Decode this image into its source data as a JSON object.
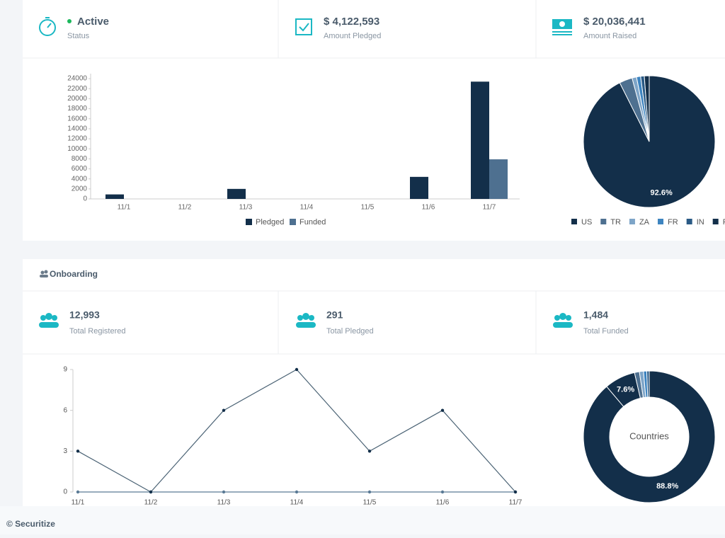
{
  "stats": [
    {
      "value": "Active",
      "label": "Status"
    },
    {
      "value": "$ 4,122,593",
      "label": "Amount Pledged"
    },
    {
      "value": "$ 20,036,441",
      "label": "Amount Raised"
    }
  ],
  "onboarding": {
    "title": "Onboarding",
    "stats": [
      {
        "value": "12,993",
        "label": "Total Registered"
      },
      {
        "value": "291",
        "label": "Total Pledged"
      },
      {
        "value": "1,484",
        "label": "Total Funded"
      }
    ]
  },
  "footer": "© Securitize",
  "chart_data": [
    {
      "type": "bar",
      "categories": [
        "11/1",
        "11/2",
        "11/3",
        "11/4",
        "11/5",
        "11/6",
        "11/7"
      ],
      "series": [
        {
          "name": "Pledged",
          "color": "#132f4a",
          "values": [
            900,
            0,
            2000,
            0,
            0,
            4400,
            23400
          ]
        },
        {
          "name": "Funded",
          "color": "#4e7090",
          "values": [
            0,
            0,
            0,
            0,
            0,
            0,
            7900
          ]
        }
      ],
      "ylim": [
        0,
        25000
      ],
      "yticks": [
        0,
        2000,
        4000,
        6000,
        8000,
        10000,
        12000,
        14000,
        16000,
        18000,
        20000,
        22000,
        24000
      ],
      "grid": false,
      "legend": "bottom"
    },
    {
      "type": "pie",
      "categories": [
        "US",
        "TR",
        "ZA",
        "FR",
        "IN",
        "Rest"
      ],
      "values": [
        92.6,
        3.2,
        1.1,
        1.0,
        0.9,
        1.2
      ],
      "value_labels": [
        "92.6%",
        null,
        null,
        null,
        null,
        null
      ],
      "colors": [
        "#132f4a",
        "#4e7090",
        "#7ea5c8",
        "#3d84c0",
        "#2a5a85",
        "#132f4a"
      ],
      "legend": "bottom"
    },
    {
      "type": "line",
      "categories": [
        "11/1",
        "11/2",
        "11/3",
        "11/4",
        "11/5",
        "11/6",
        "11/7"
      ],
      "series": [
        {
          "color": "#4a6274",
          "values": [
            3,
            0,
            6,
            9,
            3,
            6,
            0
          ]
        },
        {
          "color": "#5a7a95",
          "values": [
            0,
            0,
            0,
            0,
            0,
            0,
            0
          ]
        }
      ],
      "ylim": [
        0,
        9
      ],
      "yticks": [
        0,
        3,
        6,
        9
      ],
      "grid": false
    },
    {
      "type": "donut",
      "center_label": "Countries",
      "values": [
        88.8,
        7.6,
        1.2,
        1.0,
        0.8,
        0.6
      ],
      "value_labels": [
        "88.8%",
        "7.6%",
        null,
        null,
        null,
        null
      ],
      "colors": [
        "#132f4a",
        "#132f4a",
        "#4e7090",
        "#7ea5c8",
        "#3d84c0",
        "#2a5a85"
      ]
    }
  ]
}
